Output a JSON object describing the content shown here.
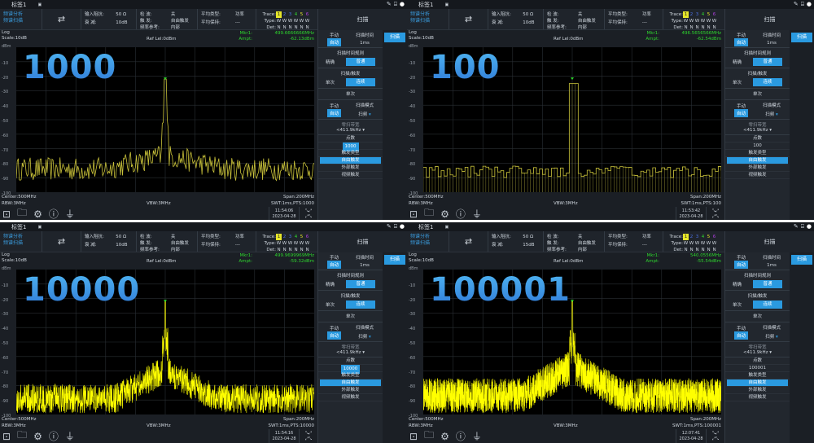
{
  "common": {
    "tab_title": "标签1",
    "mode_line1": "频谱分析",
    "mode_line2": "频谱扫描",
    "input_impedance_label": "输入阻抗:",
    "attenuation_label": "衰 减:",
    "detector_label": "检 波:",
    "detector_value": "关",
    "trigger_label": "触 发:",
    "trigger_value": "自由触发",
    "freq_ref_label": "频率参考:",
    "freq_ref_value": "内部",
    "avg_type_label": "平均类型:",
    "avg_type_value": "功率",
    "avg_count_label": "平均保持:",
    "avg_count_value": "---",
    "trace_label": "Trace:",
    "trace_numbers": [
      "1",
      "2",
      "3",
      "4",
      "5",
      "6"
    ],
    "trace_colors": [
      "#e6e62a",
      "#4b6fe0",
      "#4b6fe0",
      "#2ed52e",
      "#e6e62a",
      "#b040e0"
    ],
    "type_label": "Type:",
    "type_values": [
      "W",
      "W",
      "W",
      "W",
      "W",
      "W"
    ],
    "det_label": "Det:",
    "det_values": [
      "N",
      "N",
      "N",
      "N",
      "N",
      "N"
    ],
    "menu_title": "扫描",
    "scale_type": "Log",
    "scale": "Scale:10dB",
    "ref_level": "Ref Lel:0dBm",
    "mkr_label": "Mkr1:",
    "ampt_label": "Ampt:",
    "y_unit": "dBm",
    "y_ticks": [
      "-10",
      "-20",
      "-30",
      "-40",
      "-50",
      "-60",
      "-70",
      "-80",
      "-90",
      "-100"
    ],
    "center": "Center:500MHz",
    "span": "Span:200MHz",
    "vbw": "VBW:3MHz",
    "manual": "手动",
    "auto": "自动",
    "sweep_time_label": "扫描时间",
    "sweep_rule_label": "扫描时间规则",
    "sweep_rule_a": "精确",
    "sweep_rule_b": "普通",
    "sweep_trig_label": "扫描/触发",
    "single": "单次",
    "continuous": "连续",
    "single_btn": "单次",
    "sweep_mode_label": "扫描模式",
    "sweep_mode_value": "扫频",
    "zero_span_label": "零扫带宽",
    "zero_span_value": "<411.9kHz",
    "points_label": "点数",
    "trig_type_label": "触发类型",
    "trig_types": [
      "自由触发",
      "外部触发",
      "视频触发"
    ],
    "side_button": "扫描",
    "date": "2023-04-28",
    "accent": "#2a9ae0"
  },
  "panels": [
    {
      "big_label": "1000",
      "impedance": "50 Ω",
      "attenuation": "10dB",
      "mkr_freq": "499.6666666MHz",
      "mkr_ampt": "-62.13dBm",
      "rbw": "RBW:3MHz",
      "swt": "SWT:1ms,PTS:1000",
      "sweep_time": "1ms",
      "points": "1000",
      "time": "11:54:06"
    },
    {
      "big_label": "100",
      "impedance": "50 Ω",
      "attenuation": "10dB",
      "mkr_freq": "496.5656566MHz",
      "mkr_ampt": "-62.54dBm",
      "rbw": "RBW:3MHz",
      "swt": "SWT:1ms,PTS:100",
      "sweep_time": "1ms",
      "points": "100",
      "time": "11:53:42"
    },
    {
      "big_label": "10000",
      "impedance": "50 Ω",
      "attenuation": "10dB",
      "mkr_freq": "499.9699969MHz",
      "mkr_ampt": "-59.32dBm",
      "rbw": "RBW:3MHz",
      "swt": "SWT:1ms,PTS:10000",
      "sweep_time": "1ms",
      "points": "10000",
      "time": "11:54:16"
    },
    {
      "big_label": "100001",
      "impedance": "50 Ω",
      "attenuation": "15dB",
      "mkr_freq": "540.0556MHz",
      "mkr_ampt": "-55.54dBm",
      "rbw": "RBW:3MHz",
      "swt": "SWT:1ms,PTS:100001",
      "sweep_time": "1ms",
      "points": "100001",
      "time": "12:07:41"
    }
  ]
}
